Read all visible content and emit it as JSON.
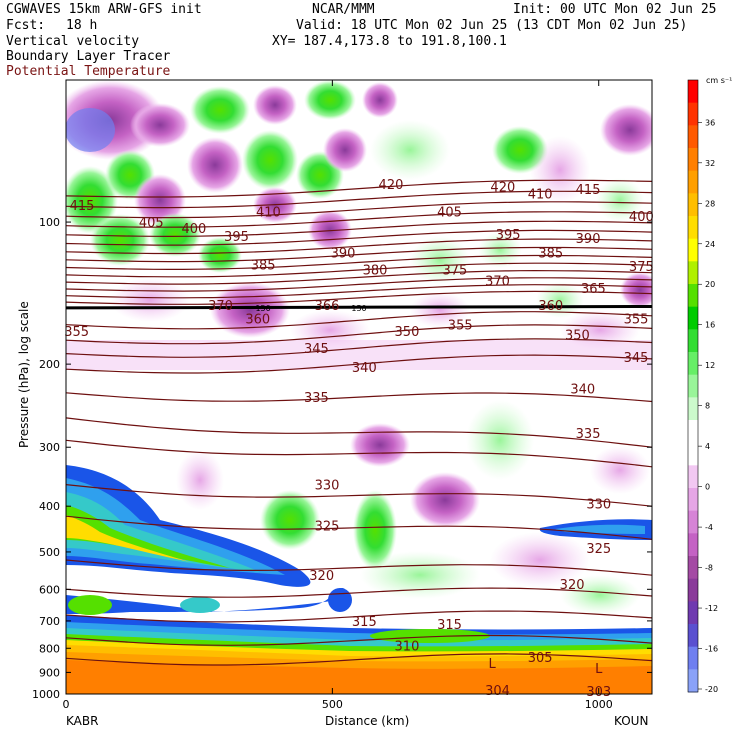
{
  "header": {
    "model": "CGWAVES 15km ARW-GFS init",
    "org": "NCAR/MMM",
    "init": "Init: 00 UTC Mon 02 Jun 25",
    "fcst_label": "Fcst:",
    "fcst_value": "18 h",
    "valid": "Valid: 18 UTC Mon 02 Jun 25 (13 CDT Mon 02 Jun 25)",
    "field1": "Vertical velocity",
    "field2": "Boundary Layer Tracer",
    "field3": "Potential Temperature",
    "xy": "XY= 187.4,173.8 to 191.8,100.1"
  },
  "colors": {
    "theta_line": "#6e1010",
    "theta_label": "#6e1010",
    "field3_text": "#7a1414"
  },
  "chart_data": {
    "type": "contour-cross-section",
    "ylabel": "Pressure (hPa), log scale",
    "xlabel": "Distance (km)",
    "y_scale": "log",
    "ylim": [
      1000,
      50
    ],
    "xlim": [
      0,
      1100
    ],
    "y_ticks": [
      "100",
      "200",
      "300",
      "400",
      "500",
      "600",
      "700",
      "800",
      "900",
      "1000"
    ],
    "y_tick_values": [
      100,
      200,
      300,
      400,
      500,
      600,
      700,
      800,
      900,
      1000
    ],
    "x_ticks": [
      "0",
      "500",
      "1000"
    ],
    "x_tick_values": [
      0,
      500,
      1000
    ],
    "left_station": "KABR",
    "right_station": "KOUN",
    "colorbar": {
      "unit": "cm s⁻¹",
      "labels": [
        "36",
        "32",
        "28",
        "24",
        "20",
        "16",
        "12",
        "8",
        "4",
        "0",
        "-4",
        "-8",
        "-12",
        "-16",
        "-20"
      ],
      "colors": [
        "#ff0000",
        "#ff3300",
        "#ff5a00",
        "#ff7f00",
        "#ff9f00",
        "#ffbe00",
        "#ffdd00",
        "#ffff00",
        "#b0f000",
        "#55e000",
        "#00cc00",
        "#33dd33",
        "#66ee66",
        "#99f599",
        "#ccfacc",
        "#ffffff",
        "#ffffff",
        "#f2c8f2",
        "#e6a6e6",
        "#d684d6",
        "#c462c4",
        "#a44aa4",
        "#8a3a9a",
        "#6f3ab0",
        "#5a50d0",
        "#6f7ff0",
        "#8aa2f8"
      ]
    },
    "theta_labels": [
      {
        "text": "415",
        "x": 30,
        "p": 92
      },
      {
        "text": "405",
        "x": 160,
        "p": 100
      },
      {
        "text": "400",
        "x": 240,
        "p": 103
      },
      {
        "text": "395",
        "x": 320,
        "p": 107
      },
      {
        "text": "410",
        "x": 380,
        "p": 95
      },
      {
        "text": "420",
        "x": 610,
        "p": 83
      },
      {
        "text": "385",
        "x": 370,
        "p": 123
      },
      {
        "text": "390",
        "x": 520,
        "p": 116
      },
      {
        "text": "380",
        "x": 580,
        "p": 126
      },
      {
        "text": "405",
        "x": 720,
        "p": 95
      },
      {
        "text": "420",
        "x": 820,
        "p": 84
      },
      {
        "text": "395",
        "x": 830,
        "p": 106
      },
      {
        "text": "375",
        "x": 730,
        "p": 126
      },
      {
        "text": "370",
        "x": 810,
        "p": 133
      },
      {
        "text": "410",
        "x": 890,
        "p": 87
      },
      {
        "text": "415",
        "x": 980,
        "p": 85
      },
      {
        "text": "385",
        "x": 910,
        "p": 116
      },
      {
        "text": "390",
        "x": 980,
        "p": 108
      },
      {
        "text": "400",
        "x": 1080,
        "p": 97
      },
      {
        "text": "375",
        "x": 1080,
        "p": 124
      },
      {
        "text": "365",
        "x": 990,
        "p": 138
      },
      {
        "text": "360",
        "x": 910,
        "p": 150
      },
      {
        "text": "370",
        "x": 290,
        "p": 150
      },
      {
        "text": "360",
        "x": 360,
        "p": 160
      },
      {
        "text": "366",
        "x": 490,
        "p": 150
      },
      {
        "text": "355",
        "x": 20,
        "p": 170
      },
      {
        "text": "355",
        "x": 740,
        "p": 165
      },
      {
        "text": "355",
        "x": 1070,
        "p": 160
      },
      {
        "text": "350",
        "x": 640,
        "p": 170
      },
      {
        "text": "350",
        "x": 960,
        "p": 173
      },
      {
        "text": "345",
        "x": 470,
        "p": 185
      },
      {
        "text": "340",
        "x": 560,
        "p": 203
      },
      {
        "text": "345",
        "x": 1070,
        "p": 193
      },
      {
        "text": "340",
        "x": 970,
        "p": 225
      },
      {
        "text": "335",
        "x": 470,
        "p": 235
      },
      {
        "text": "335",
        "x": 980,
        "p": 280
      },
      {
        "text": "330",
        "x": 490,
        "p": 360
      },
      {
        "text": "330",
        "x": 1000,
        "p": 395
      },
      {
        "text": "325",
        "x": 490,
        "p": 440
      },
      {
        "text": "325",
        "x": 1000,
        "p": 490
      },
      {
        "text": "320",
        "x": 480,
        "p": 560
      },
      {
        "text": "320",
        "x": 950,
        "p": 585
      },
      {
        "text": "315",
        "x": 560,
        "p": 700
      },
      {
        "text": "315",
        "x": 720,
        "p": 710
      },
      {
        "text": "310",
        "x": 640,
        "p": 790
      },
      {
        "text": "305",
        "x": 890,
        "p": 835
      },
      {
        "text": "304",
        "x": 810,
        "p": 980
      },
      {
        "text": "303",
        "x": 1000,
        "p": 985
      }
    ],
    "low_markers": [
      {
        "text": "L",
        "x": 800,
        "p": 860
      },
      {
        "text": "L",
        "x": 1000,
        "p": 880
      }
    ],
    "tracer_labels": [
      {
        "text": "150",
        "x": 370,
        "p": 152
      },
      {
        "text": "150",
        "x": 550,
        "p": 152
      }
    ]
  }
}
